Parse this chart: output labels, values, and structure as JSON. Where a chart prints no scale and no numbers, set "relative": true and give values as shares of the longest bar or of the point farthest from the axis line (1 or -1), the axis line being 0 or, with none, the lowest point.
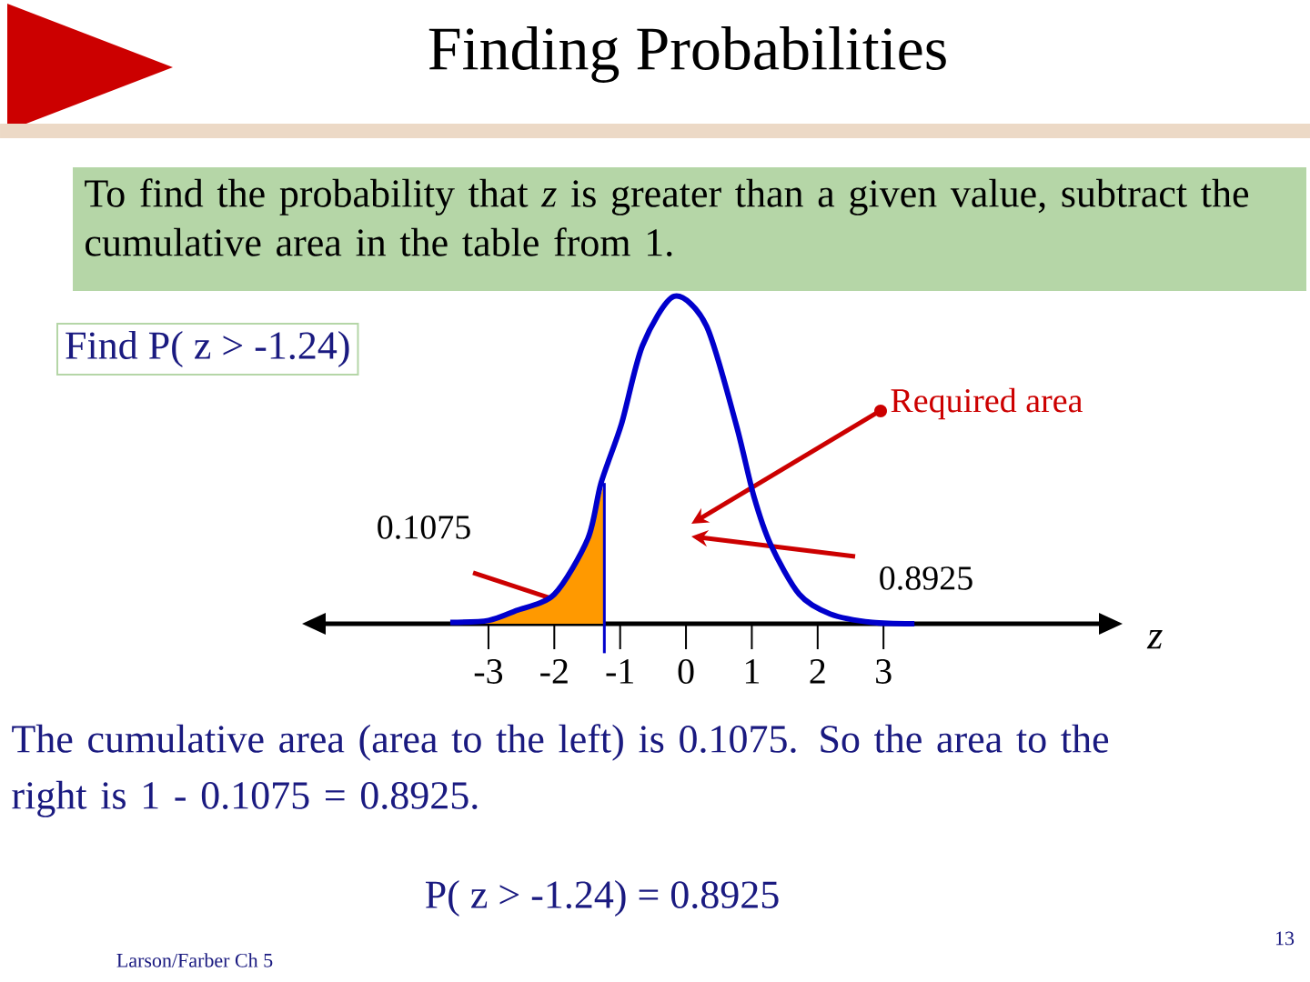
{
  "chart_data": {
    "type": "line",
    "title": "Finding Probabilities",
    "subtitle": "To find the probability that *z* is greater than a given value, subtract the cumulative area in the table from 1.",
    "xlabel": "z",
    "annotations": [
      "Find P( z > -1.24)",
      "Required area",
      "0.1075",
      "0.8925",
      "The cumulative area (area to the left) is 0.1075. So the area to the right is 1 - 0.1075 = 0.8925.",
      "P( z > -1.24) = 0.8925",
      "Larson/Farber Ch 5",
      "13"
    ],
    "relative": true,
    "xlim": [
      -5.5,
      6.3
    ],
    "xticks": [
      -3,
      -2,
      -1,
      0,
      1,
      2,
      3
    ],
    "ref_lines": [
      {
        "axis": "x",
        "value": -1.24,
        "color": "#0000cc"
      }
    ],
    "series": [
      {
        "type": "area",
        "color": "#ff9900",
        "x": [
          -3.58,
          -3,
          -2.58,
          -2,
          -1.49,
          -1.24
        ],
        "values": [
          0.004,
          0.01,
          0.04,
          0.09,
          0.26,
          0.43
        ]
      },
      {
        "type": "line",
        "color": "#0000cc",
        "x": [
          -3.58,
          -3,
          -2.58,
          -2,
          -1.49,
          -1.29,
          -0.98,
          -0.66,
          -0.18,
          0.31,
          0.76,
          1.03,
          1.29,
          1.72,
          2.19,
          2.83,
          3.47
        ],
        "values": [
          0.004,
          0.01,
          0.04,
          0.09,
          0.26,
          0.43,
          0.61,
          0.85,
          1,
          0.91,
          0.61,
          0.39,
          0.24,
          0.09,
          0.03,
          0.004,
          0
        ]
      }
    ]
  }
}
